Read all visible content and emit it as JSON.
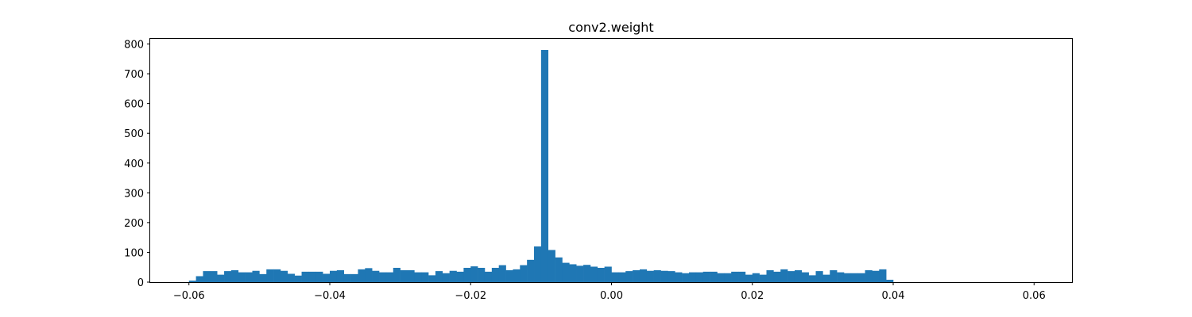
{
  "chart_data": {
    "type": "bar",
    "title": "conv2.weight",
    "xlabel": "",
    "ylabel": "",
    "xlim": [
      -0.0655,
      0.0655
    ],
    "ylim": [
      0,
      820
    ],
    "xticks": [
      {
        "value": -0.06,
        "label": "−0.06"
      },
      {
        "value": -0.04,
        "label": "−0.04"
      },
      {
        "value": -0.02,
        "label": "−0.02"
      },
      {
        "value": 0.0,
        "label": "0.00"
      },
      {
        "value": 0.02,
        "label": "0.02"
      },
      {
        "value": 0.04,
        "label": "0.04"
      },
      {
        "value": 0.06,
        "label": "0.06"
      }
    ],
    "yticks": [
      {
        "value": 0,
        "label": "0"
      },
      {
        "value": 100,
        "label": "100"
      },
      {
        "value": 200,
        "label": "200"
      },
      {
        "value": 300,
        "label": "300"
      },
      {
        "value": 400,
        "label": "400"
      },
      {
        "value": 500,
        "label": "500"
      },
      {
        "value": 600,
        "label": "600"
      },
      {
        "value": 700,
        "label": "700"
      },
      {
        "value": 800,
        "label": "800"
      }
    ],
    "grid": false,
    "bar_color": "#1f77b4",
    "bins": {
      "start": -0.06,
      "width": 0.001,
      "counts": [
        5,
        20,
        37,
        37,
        25,
        37,
        40,
        33,
        33,
        38,
        27,
        43,
        43,
        38,
        28,
        22,
        35,
        35,
        35,
        28,
        38,
        40,
        27,
        27,
        43,
        47,
        38,
        33,
        33,
        48,
        40,
        40,
        33,
        33,
        23,
        37,
        30,
        38,
        35,
        48,
        53,
        48,
        35,
        48,
        57,
        40,
        43,
        57,
        75,
        120,
        780,
        108,
        83,
        65,
        60,
        55,
        58,
        52,
        48,
        52,
        33,
        33,
        37,
        40,
        43,
        38,
        40,
        38,
        37,
        33,
        30,
        33,
        33,
        35,
        35,
        30,
        30,
        35,
        35,
        25,
        30,
        25,
        40,
        35,
        43,
        37,
        40,
        33,
        23,
        37,
        25,
        40,
        33,
        30,
        30,
        30,
        40,
        38,
        43,
        8
      ]
    }
  }
}
